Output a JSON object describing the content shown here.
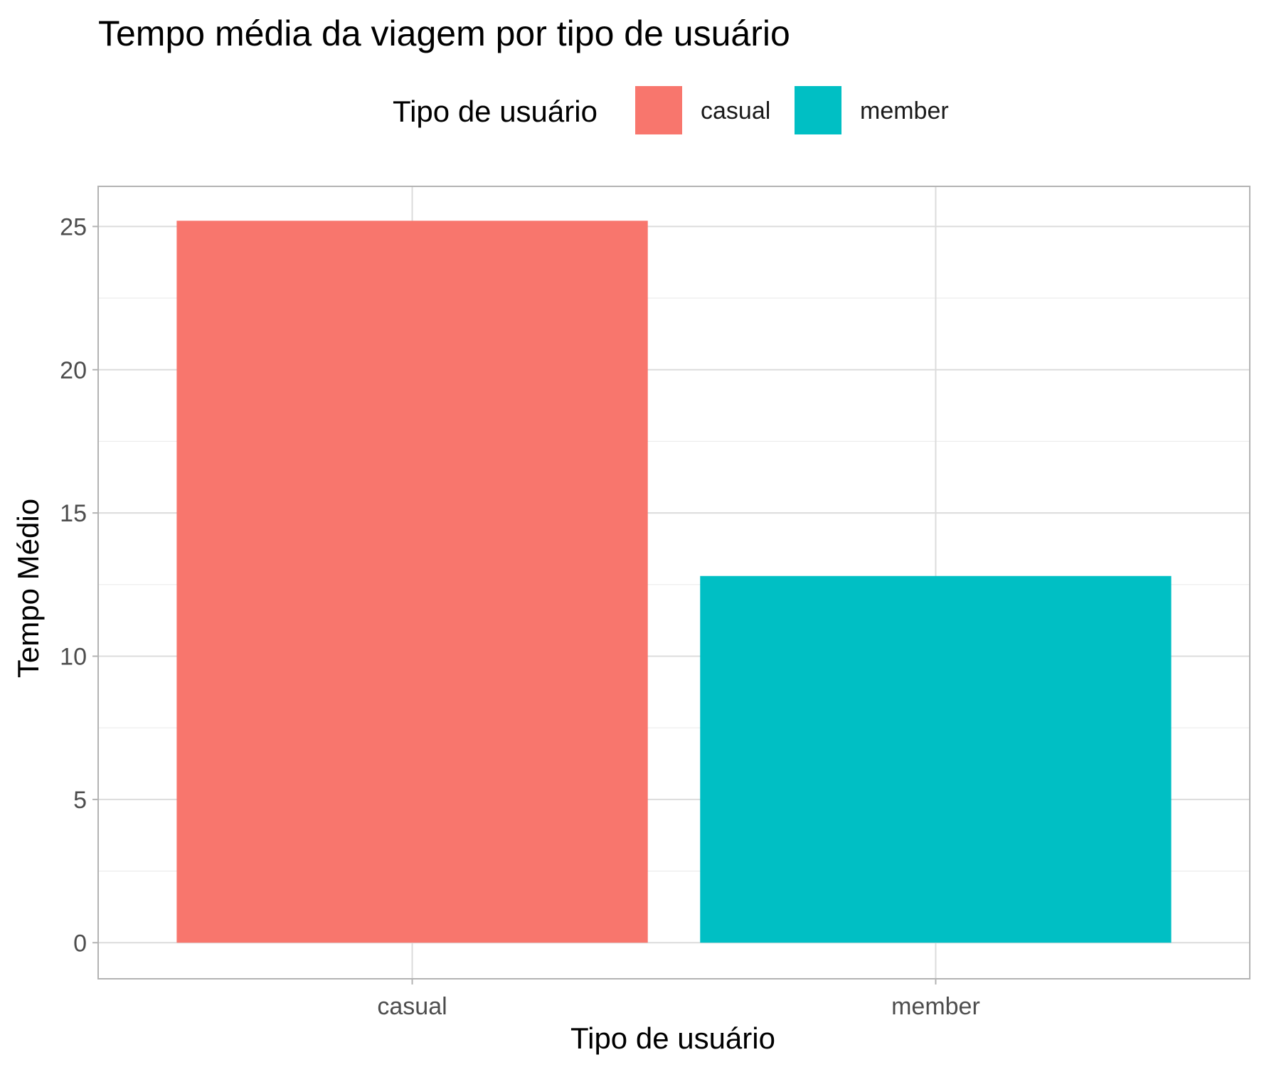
{
  "chart_data": {
    "type": "bar",
    "title": "Tempo média da viagem por tipo de usuário",
    "xlabel": "Tipo de usuário",
    "ylabel": "Tempo Médio",
    "categories": [
      "casual",
      "member"
    ],
    "values": [
      25.2,
      12.8
    ],
    "ylim": [
      -1.26,
      26.4
    ],
    "yticks": [
      0,
      5,
      10,
      15,
      20,
      25
    ],
    "grid": true,
    "legend": {
      "title": "Tipo de usuário",
      "placement": "top",
      "entries": [
        "casual",
        "member"
      ]
    },
    "colors": {
      "casual": "#F8766D",
      "member": "#00BFC4"
    }
  }
}
